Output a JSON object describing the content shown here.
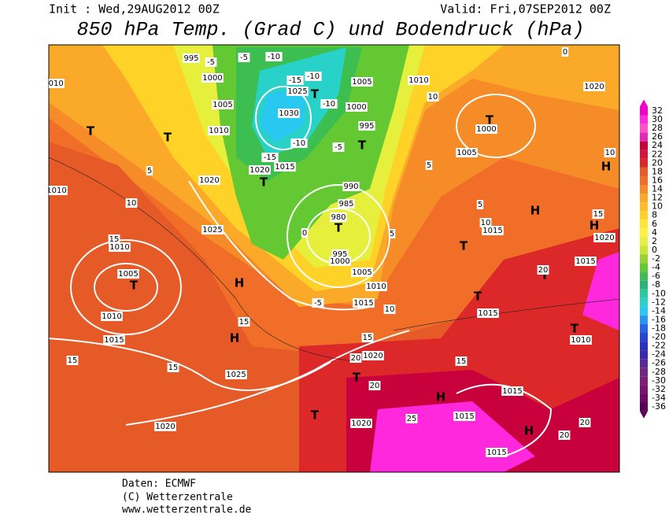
{
  "header": {
    "init": "Init : Wed,29AUG2012 00Z",
    "valid": "Valid: Fri,07SEP2012 00Z",
    "title": "850 hPa Temp. (Grad C) und Bodendruck (hPa)"
  },
  "colorbar": {
    "ticks": [
      32,
      30,
      28,
      26,
      24,
      22,
      20,
      18,
      16,
      14,
      12,
      10,
      8,
      6,
      4,
      2,
      0,
      -2,
      -4,
      -6,
      -8,
      -10,
      -12,
      -14,
      -16,
      -18,
      -20,
      -22,
      -24,
      -26,
      -28,
      -30,
      -32,
      -34,
      -36
    ],
    "colors": [
      "#f000c8",
      "#ff28dc",
      "#ff50c8",
      "#e628b4",
      "#c8003c",
      "#d7143c",
      "#dc2828",
      "#e65a28",
      "#f06e28",
      "#f58c28",
      "#faaa28",
      "#ffbe28",
      "#ffd228",
      "#ffe632",
      "#fff03c",
      "#e6f03c",
      "#c8e632",
      "#96d232",
      "#64c832",
      "#3cbe50",
      "#28b478",
      "#28c8a0",
      "#28d2c8",
      "#28c8f0",
      "#2896f0",
      "#2864e6",
      "#2846d2",
      "#2832be",
      "#3c28aa",
      "#5a2896",
      "#6e2882",
      "#7a1e78",
      "#78146e",
      "#6e0a64",
      "#5a005a"
    ]
  },
  "map_labels": [
    "T",
    "T",
    "T",
    "T",
    "T",
    "T",
    "T",
    "T",
    "T",
    "T",
    "T",
    "T",
    "T",
    "T",
    "H",
    "H",
    "H",
    "H",
    "H",
    "H",
    "H",
    "1010",
    "995",
    "1000",
    "1005",
    "1010",
    "1025",
    "1030",
    "1020",
    "1015",
    "1020",
    "1010",
    "1025",
    "1010",
    "1005",
    "1010",
    "1015",
    "1025",
    "1020",
    "1005",
    "1000",
    "995",
    "990",
    "985",
    "980",
    "995",
    "1000",
    "1005",
    "1010",
    "1015",
    "1020",
    "1010",
    "1005",
    "1000",
    "1020",
    "1015",
    "1020",
    "1015",
    "1015",
    "1010",
    "1015",
    "1015",
    "1015",
    "1020",
    "-5",
    "-5",
    "-10",
    "-15",
    "-10",
    "-10",
    "-15",
    "-10",
    "-5",
    "5",
    "10",
    "15",
    "0",
    "-5",
    "5",
    "10",
    "10",
    "5",
    "5",
    "10",
    "15",
    "10",
    "15",
    "15",
    "15",
    "20",
    "15",
    "15",
    "20",
    "25",
    "20",
    "20",
    "20",
    "0"
  ],
  "footer": [
    "Daten: ECMWF",
    "(C) Wetterzentrale",
    "www.wetterzentrale.de"
  ]
}
